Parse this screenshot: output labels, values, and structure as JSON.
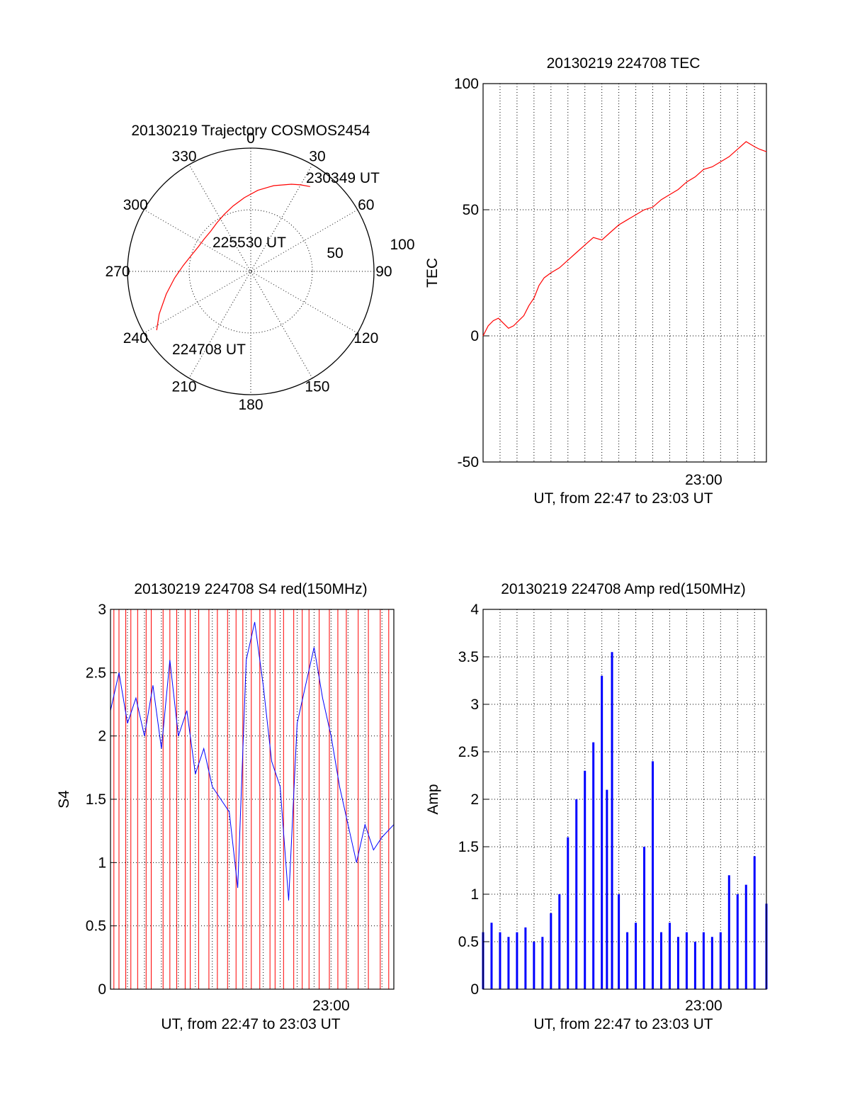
{
  "colors": {
    "red": "#ff0000",
    "blue": "#0000ff",
    "black": "#000000"
  },
  "chart_data": [
    {
      "type": "polar",
      "title": "20130219 Trajectory COSMOS2454",
      "azimuth_labels": [
        "0",
        "30",
        "60",
        "90",
        "120",
        "150",
        "180",
        "210",
        "240",
        "270",
        "300",
        "330"
      ],
      "radial_labels": [
        "50",
        "100"
      ],
      "rlim": [
        0,
        100
      ],
      "grid": true,
      "series": [
        {
          "color": "red",
          "azimuth_deg": [
            238,
            245,
            255,
            265,
            275,
            285,
            295,
            305,
            315,
            325,
            335,
            345,
            355,
            5,
            15,
            25,
            30,
            35
          ],
          "radius": [
            90,
            82,
            71,
            62,
            55,
            50,
            47,
            46,
            46,
            48,
            51,
            55,
            60,
            66,
            72,
            78,
            81,
            84
          ]
        }
      ],
      "annotations": [
        {
          "text": "224708 UT",
          "azimuth_deg": 238,
          "radius": 90
        },
        {
          "text": "225530 UT",
          "azimuth_deg": 300,
          "radius": 47
        },
        {
          "text": "230349 UT",
          "azimuth_deg": 35,
          "radius": 84
        }
      ]
    },
    {
      "type": "line",
      "title": "20130219 224708 TEC",
      "ylabel": "TEC",
      "xlabel": "UT, from 22:47 to 23:03 UT",
      "x_range_minutes": [
        0,
        16.7
      ],
      "x_tick_labels": [
        {
          "minute": 13,
          "label": "23:00"
        }
      ],
      "ylim": [
        -50,
        100
      ],
      "y_ticks": [
        -50,
        0,
        50,
        100
      ],
      "grid": true,
      "series": [
        {
          "color": "red",
          "x_minutes": [
            0,
            0.3,
            0.6,
            0.9,
            1.2,
            1.5,
            1.8,
            2.1,
            2.4,
            2.7,
            3.0,
            3.3,
            3.6,
            4.0,
            4.5,
            5.0,
            5.5,
            6.0,
            6.5,
            7.0,
            7.5,
            8.0,
            8.5,
            9.0,
            9.5,
            10.0,
            10.5,
            11.0,
            11.5,
            12.0,
            12.5,
            13.0,
            13.5,
            14.0,
            14.5,
            15.0,
            15.5,
            16.0,
            16.3,
            16.7
          ],
          "values": [
            0,
            4,
            6,
            7,
            5,
            3,
            4,
            6,
            8,
            12,
            15,
            20,
            23,
            25,
            27,
            30,
            33,
            36,
            39,
            38,
            41,
            44,
            46,
            48,
            50,
            51,
            54,
            56,
            58,
            61,
            63,
            66,
            67,
            69,
            71,
            74,
            77,
            75,
            74,
            73
          ]
        }
      ]
    },
    {
      "type": "line",
      "title": "20130219 224708 S4 red(150MHz)",
      "ylabel": "S4",
      "xlabel": "UT, from 22:47 to 23:03 UT",
      "x_range_minutes": [
        0,
        16.7
      ],
      "x_tick_labels": [
        {
          "minute": 13,
          "label": "23:00"
        }
      ],
      "ylim": [
        0,
        3
      ],
      "y_ticks": [
        0,
        0.5,
        1,
        1.5,
        2,
        2.5,
        3
      ],
      "grid": true,
      "series": [
        {
          "color": "blue",
          "x_minutes": [
            0,
            0.5,
            1.0,
            1.5,
            2.0,
            2.5,
            3.0,
            3.5,
            4.0,
            4.5,
            5.0,
            5.5,
            6.0,
            6.5,
            7.0,
            7.5,
            8.0,
            8.5,
            9.0,
            9.5,
            10.0,
            10.5,
            11.0,
            11.5,
            12.0,
            12.5,
            13.0,
            13.5,
            14.0,
            14.5,
            15.0,
            15.5,
            16.0,
            16.7
          ],
          "values": [
            2.2,
            2.5,
            2.1,
            2.3,
            2.0,
            2.4,
            1.9,
            2.6,
            2.0,
            2.2,
            1.7,
            1.9,
            1.6,
            1.5,
            1.4,
            0.8,
            2.6,
            2.9,
            2.4,
            1.8,
            1.6,
            0.7,
            2.1,
            2.4,
            2.7,
            2.3,
            2.0,
            1.6,
            1.3,
            1.0,
            1.3,
            1.1,
            1.2,
            1.3
          ]
        }
      ],
      "red_dropout_minutes": [
        0.2,
        0.5,
        0.9,
        1.2,
        1.6,
        2.1,
        2.4,
        3.1,
        3.5,
        3.9,
        4.4,
        4.7,
        5.2,
        5.8,
        6.3,
        6.9,
        7.4,
        7.8,
        8.3,
        8.8,
        9.4,
        9.7,
        10.2,
        10.8,
        11.3,
        11.7,
        12.3,
        12.9,
        13.4,
        13.9,
        14.6,
        15.2,
        15.9,
        16.4
      ]
    },
    {
      "type": "bar",
      "title": "20130219 224708 Amp red(150MHz)",
      "ylabel": "Amp",
      "xlabel": "UT, from 22:47 to 23:03 UT",
      "x_range_minutes": [
        0,
        16.7
      ],
      "x_tick_labels": [
        {
          "minute": 13,
          "label": "23:00"
        }
      ],
      "ylim": [
        0,
        4
      ],
      "y_ticks": [
        0,
        0.5,
        1,
        1.5,
        2,
        2.5,
        3,
        3.5,
        4
      ],
      "grid": true,
      "series": [
        {
          "color": "blue",
          "x_minutes": [
            0,
            0.5,
            1.0,
            1.5,
            2.0,
            2.5,
            3.0,
            3.5,
            4.0,
            4.5,
            5.0,
            5.5,
            6.0,
            6.5,
            7.0,
            7.3,
            7.6,
            8.0,
            8.5,
            9.0,
            9.5,
            10.0,
            10.5,
            11.0,
            11.5,
            12.0,
            12.5,
            13.0,
            13.5,
            14.0,
            14.5,
            15.0,
            15.5,
            16.0,
            16.7
          ],
          "values": [
            0.6,
            0.7,
            0.6,
            0.55,
            0.6,
            0.65,
            0.5,
            0.55,
            0.8,
            1.0,
            1.6,
            2.0,
            2.3,
            2.6,
            3.3,
            2.1,
            3.55,
            1.0,
            0.6,
            0.7,
            1.5,
            2.4,
            0.6,
            0.7,
            0.55,
            0.6,
            0.5,
            0.6,
            0.55,
            0.6,
            1.2,
            1.0,
            1.1,
            1.4,
            0.9
          ]
        }
      ]
    }
  ]
}
